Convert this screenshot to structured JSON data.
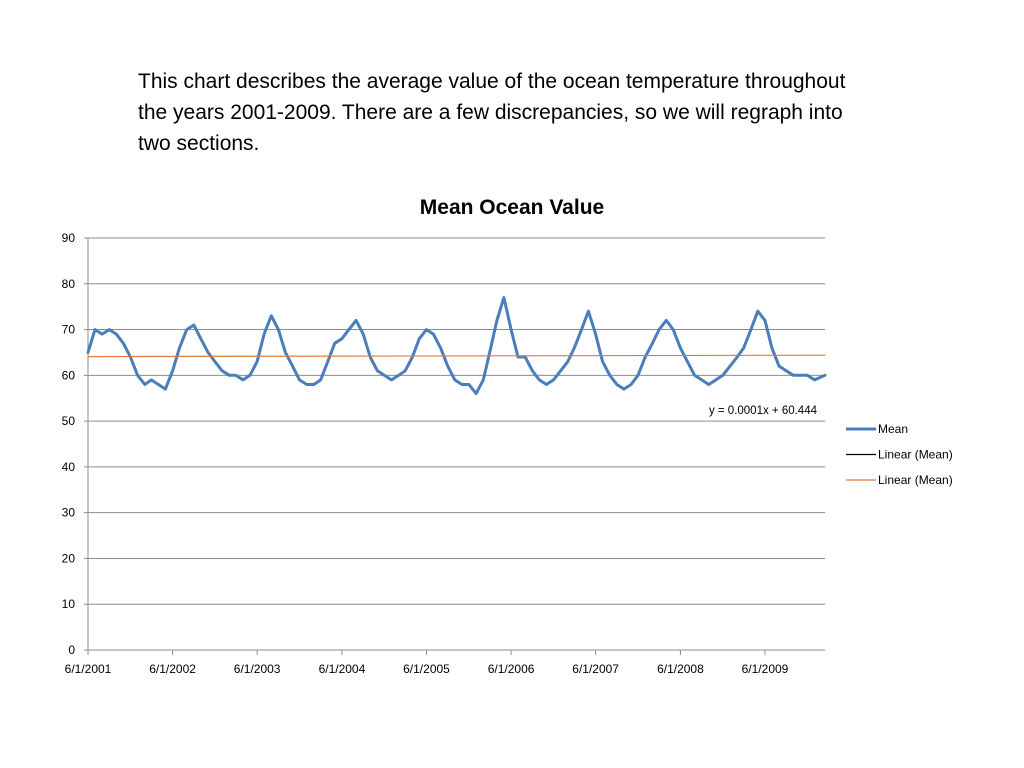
{
  "caption": "This chart describes the average value of the ocean temperature throughout the years 2001-2009. There are a few discrepancies, so we will regraph into two sections.",
  "chart_data": {
    "type": "line",
    "title": "Mean Ocean Value",
    "xlabel": "",
    "ylabel": "",
    "ylim": [
      0,
      90
    ],
    "yticks": [
      0,
      10,
      20,
      30,
      40,
      50,
      60,
      70,
      80,
      90
    ],
    "xlim": [
      "2001-06-01",
      "2010-02-15"
    ],
    "xticks": [
      "6/1/2001",
      "6/1/2002",
      "6/1/2003",
      "6/1/2004",
      "6/1/2005",
      "6/1/2006",
      "6/1/2007",
      "6/1/2008",
      "6/1/2009"
    ],
    "grid": "horizontal",
    "legend_position": "right",
    "series": [
      {
        "name": "Mean",
        "color": "#4a7ebb",
        "x": [
          "2001-06-01",
          "2001-07-01",
          "2001-08-01",
          "2001-09-01",
          "2001-10-01",
          "2001-11-01",
          "2001-12-01",
          "2002-01-01",
          "2002-02-01",
          "2002-03-01",
          "2002-04-01",
          "2002-05-01",
          "2002-06-01",
          "2002-07-01",
          "2002-08-01",
          "2002-09-01",
          "2002-10-01",
          "2002-11-01",
          "2002-12-01",
          "2003-01-01",
          "2003-02-01",
          "2003-03-01",
          "2003-04-01",
          "2003-05-01",
          "2003-06-01",
          "2003-07-01",
          "2003-08-01",
          "2003-09-01",
          "2003-10-01",
          "2003-11-01",
          "2003-12-01",
          "2004-01-01",
          "2004-02-01",
          "2004-03-01",
          "2004-04-01",
          "2004-05-01",
          "2004-06-01",
          "2004-07-01",
          "2004-08-01",
          "2004-09-01",
          "2004-10-01",
          "2004-11-01",
          "2004-12-01",
          "2005-01-01",
          "2005-02-01",
          "2005-03-01",
          "2005-04-01",
          "2005-05-01",
          "2005-06-01",
          "2005-07-01",
          "2005-08-01",
          "2005-09-01",
          "2005-10-01",
          "2005-11-01",
          "2005-12-01",
          "2006-01-01",
          "2006-02-01",
          "2006-03-01",
          "2006-04-01",
          "2006-05-01",
          "2006-06-01",
          "2006-07-01",
          "2006-08-01",
          "2006-09-01",
          "2006-10-01",
          "2006-11-01",
          "2006-12-01",
          "2007-01-01",
          "2007-02-01",
          "2007-03-01",
          "2007-04-01",
          "2007-05-01",
          "2007-06-01",
          "2007-07-01",
          "2007-08-01",
          "2007-09-01",
          "2007-10-01",
          "2007-11-01",
          "2007-12-01",
          "2008-01-01",
          "2008-02-01",
          "2008-03-01",
          "2008-04-01",
          "2008-05-01",
          "2008-06-01",
          "2008-07-01",
          "2008-08-01",
          "2008-09-01",
          "2008-10-01",
          "2008-11-01",
          "2008-12-01",
          "2009-01-01",
          "2009-02-01",
          "2009-03-01",
          "2009-04-01",
          "2009-05-01",
          "2009-06-01",
          "2009-07-01",
          "2009-08-01",
          "2009-09-01",
          "2009-10-01",
          "2009-11-01",
          "2009-12-01",
          "2010-01-01",
          "2010-02-15"
        ],
        "values": [
          65,
          70,
          69,
          70,
          69,
          67,
          64,
          60,
          58,
          59,
          58,
          57,
          61,
          66,
          70,
          71,
          68,
          65,
          63,
          61,
          60,
          60,
          59,
          60,
          63,
          69,
          73,
          70,
          65,
          62,
          59,
          58,
          58,
          59,
          63,
          67,
          68,
          70,
          72,
          69,
          64,
          61,
          60,
          59,
          60,
          61,
          64,
          68,
          70,
          69,
          66,
          62,
          59,
          58,
          58,
          56,
          59,
          65,
          72,
          77,
          70,
          64,
          64,
          61,
          59,
          58,
          59,
          61,
          63,
          66,
          70,
          74,
          69,
          63,
          60,
          58,
          57,
          58,
          60,
          64,
          67,
          70,
          72,
          70,
          66,
          63,
          60,
          59,
          58,
          59,
          60,
          62,
          64,
          66,
          70,
          74,
          72,
          66,
          62,
          61,
          60,
          60,
          60,
          59,
          60
        ]
      },
      {
        "name": "Linear (Mean)",
        "color": "#000000",
        "values": []
      },
      {
        "name": "Linear (Mean)",
        "color": "#e07b39",
        "x": [
          "2001-06-01",
          "2010-02-15"
        ],
        "values": [
          64.1,
          64.4
        ]
      }
    ],
    "annotations": [
      {
        "text": "y = 0.0001x + 60.444"
      }
    ]
  }
}
